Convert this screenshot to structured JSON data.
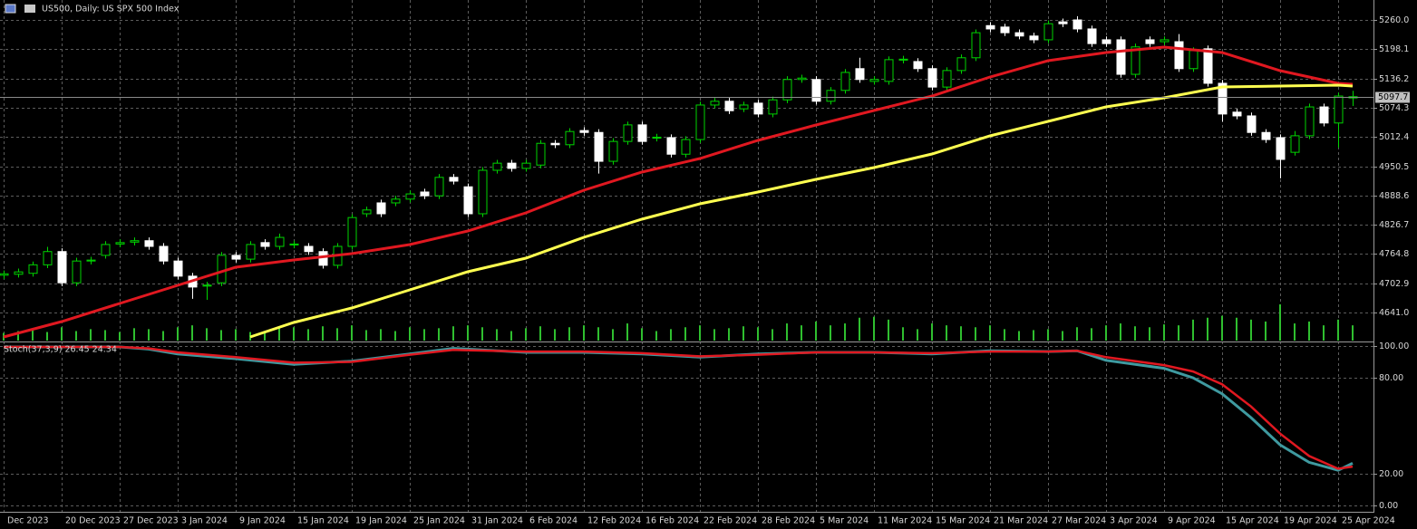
{
  "chart_data": [
    {
      "type": "candlestick",
      "title": "US500, Daily:  US SPX 500 Index",
      "categories": [
        "Dec 2023",
        null,
        null,
        null,
        "20 Dec 2023",
        null,
        null,
        null,
        "27 Dec 2023",
        null,
        null,
        null,
        "3 Jan 2024",
        null,
        null,
        null,
        "9 Jan 2024",
        null,
        null,
        null,
        "15 Jan 2024",
        null,
        null,
        null,
        "19 Jan 2024",
        null,
        null,
        null,
        "25 Jan 2024",
        null,
        null,
        null,
        "31 Jan 2024",
        null,
        null,
        null,
        "6 Feb 2024",
        null,
        null,
        null,
        "12 Feb 2024",
        null,
        null,
        null,
        "16 Feb 2024",
        null,
        null,
        null,
        "22 Feb 2024",
        null,
        null,
        null,
        "28 Feb 2024",
        null,
        null,
        null,
        "5 Mar 2024",
        null,
        null,
        null,
        "11 Mar 2024",
        null,
        null,
        null,
        "15 Mar 2024",
        null,
        null,
        null,
        "21 Mar 2024",
        null,
        null,
        null,
        "27 Mar 2024",
        null,
        null,
        null,
        "3 Apr 2024",
        null,
        null,
        null,
        "9 Apr 2024",
        null,
        null,
        null,
        "15 Apr 2024",
        null,
        null,
        null,
        "19 Apr 2024",
        null,
        null,
        null,
        "25 Apr 2024",
        null
      ],
      "open": [
        4720,
        4722,
        4724,
        4742,
        4770,
        4704,
        4750,
        4762,
        4786,
        4790,
        4793,
        4781,
        4750,
        4718,
        4697,
        4704,
        4762,
        4754,
        4789,
        4781,
        4784,
        4781,
        4770,
        4741,
        4781,
        4850,
        4873,
        4873,
        4881,
        4896,
        4888,
        4927,
        4907,
        4850,
        4942,
        4957,
        4946,
        4953,
        4999,
        4996,
        5026,
        5022,
        4961,
        5003,
        5038,
        5010,
        5011,
        4976,
        5007,
        5080,
        5088,
        5072,
        5084,
        5061,
        5091,
        5134,
        5134,
        5088,
        5111,
        5157,
        5130,
        5130,
        5175,
        5172,
        5157,
        5118,
        5153,
        5180,
        5248,
        5245,
        5233,
        5226,
        5218,
        5256,
        5260,
        5241,
        5218,
        5218,
        5145,
        5218,
        5214,
        5214,
        5157,
        5199,
        5126,
        5065,
        5057,
        5022,
        5011,
        4980,
        5015,
        5076,
        5042,
        5095
      ],
      "high": [
        4730,
        4734,
        4749,
        4780,
        4777,
        4757,
        4759,
        4792,
        4796,
        4800,
        4800,
        4788,
        4757,
        4725,
        4706,
        4769,
        4769,
        4792,
        4796,
        4808,
        4793,
        4788,
        4777,
        4788,
        4849,
        4865,
        4880,
        4888,
        4899,
        4903,
        4934,
        4934,
        4914,
        4949,
        4964,
        4964,
        4964,
        5006,
        5006,
        5031,
        5033,
        5029,
        5010,
        5045,
        5045,
        5019,
        5018,
        5014,
        5087,
        5095,
        5095,
        5087,
        5091,
        5098,
        5141,
        5144,
        5141,
        5118,
        5156,
        5180,
        5141,
        5183,
        5184,
        5179,
        5164,
        5160,
        5187,
        5240,
        5255,
        5252,
        5240,
        5233,
        5259,
        5263,
        5268,
        5248,
        5225,
        5225,
        5210,
        5225,
        5225,
        5230,
        5202,
        5206,
        5133,
        5072,
        5064,
        5029,
        5018,
        5025,
        5083,
        5083,
        5106,
        5110
      ],
      "low": [
        4712,
        4715,
        4717,
        4735,
        4697,
        4697,
        4743,
        4755,
        4779,
        4783,
        4774,
        4743,
        4711,
        4670,
        4668,
        4697,
        4747,
        4747,
        4774,
        4774,
        4777,
        4763,
        4734,
        4734,
        4774,
        4843,
        4843,
        4866,
        4874,
        4881,
        4881,
        4912,
        4843,
        4843,
        4935,
        4939,
        4939,
        4946,
        4989,
        4989,
        5015,
        4935,
        4954,
        4996,
        4996,
        5003,
        4969,
        4969,
        5000,
        5073,
        5061,
        5065,
        5054,
        5054,
        5084,
        5127,
        5081,
        5081,
        5104,
        5127,
        5123,
        5123,
        5168,
        5150,
        5111,
        5111,
        5146,
        5173,
        5234,
        5226,
        5219,
        5211,
        5211,
        5245,
        5234,
        5203,
        5203,
        5138,
        5138,
        5203,
        5207,
        5150,
        5150,
        5119,
        5045,
        5050,
        5015,
        5000,
        4925,
        4973,
        5008,
        5035,
        4990,
        5078
      ],
      "close": [
        4723,
        4727,
        4742,
        4770,
        4704,
        4750,
        4752,
        4785,
        4789,
        4793,
        4781,
        4750,
        4718,
        4695,
        4699,
        4762,
        4754,
        4785,
        4781,
        4800,
        4786,
        4770,
        4741,
        4781,
        4842,
        4858,
        4850,
        4881,
        4892,
        4888,
        4927,
        4919,
        4850,
        4942,
        4957,
        4946,
        4957,
        4999,
        4996,
        5024,
        5022,
        4961,
        5003,
        5038,
        5003,
        5012,
        4976,
        5007,
        5080,
        5088,
        5068,
        5080,
        5061,
        5091,
        5134,
        5137,
        5088,
        5111,
        5149,
        5134,
        5134,
        5176,
        5177,
        5157,
        5118,
        5153,
        5180,
        5233,
        5241,
        5233,
        5226,
        5218,
        5252,
        5252,
        5241,
        5210,
        5210,
        5145,
        5203,
        5210,
        5218,
        5157,
        5195,
        5126,
        5061,
        5057,
        5022,
        5007,
        4965,
        5015,
        5076,
        5042,
        5099,
        5097.7
      ],
      "up_color": "#00d400",
      "down_color": "#ffffff",
      "volume": [
        8,
        10,
        12,
        9,
        14,
        10,
        12,
        11,
        9,
        13,
        12,
        10,
        14,
        16,
        13,
        11,
        12,
        9,
        10,
        13,
        14,
        12,
        15,
        13,
        16,
        11,
        12,
        10,
        14,
        12,
        13,
        15,
        16,
        14,
        12,
        10,
        13,
        15,
        12,
        14,
        16,
        14,
        12,
        18,
        13,
        10,
        12,
        14,
        16,
        12,
        13,
        15,
        14,
        12,
        18,
        16,
        20,
        16,
        18,
        24,
        25,
        22,
        14,
        12,
        18,
        16,
        15,
        14,
        16,
        12,
        10,
        11,
        12,
        10,
        14,
        13,
        16,
        18,
        15,
        14,
        17,
        16,
        22,
        24,
        26,
        24,
        22,
        20,
        38,
        18,
        20,
        16,
        22,
        16
      ],
      "volume_color": "#2fbf2f",
      "lines": [
        {
          "color": "#e01820",
          "x": [
            0,
            4,
            8,
            12,
            16,
            20,
            24,
            28,
            32,
            36,
            40,
            44,
            48,
            52,
            56,
            60,
            64,
            68,
            72,
            76,
            80,
            84,
            88,
            92,
            93
          ],
          "values": [
            4589.4,
            4622.0,
            4660.3,
            4698.6,
            4737.0,
            4752.3,
            4765.7,
            4784.8,
            4813.6,
            4851.9,
            4899.8,
            4938.1,
            4966.9,
            5005.2,
            5037.7,
            5068.4,
            5099.1,
            5139.3,
            5173.8,
            5191.0,
            5202.5,
            5191.0,
            5152.7,
            5125.9,
            5124.0
          ]
        },
        {
          "color": "#ffff50",
          "x": [
            17,
            20,
            24,
            28,
            32,
            36,
            40,
            44,
            48,
            52,
            56,
            60,
            64,
            68,
            72,
            76,
            80,
            84,
            88,
            92,
            93
          ],
          "values": [
            4589.4,
            4620.0,
            4650.7,
            4689.0,
            4727.3,
            4756.1,
            4800.2,
            4838.5,
            4871.0,
            4895.9,
            4922.8,
            4947.7,
            4976.4,
            5014.8,
            5045.4,
            5076.1,
            5095.2,
            5118.2,
            5120.1,
            5122.0,
            5120.1
          ]
        }
      ],
      "last_price": 5097.7,
      "ylim": [
        4581.7,
        5302.2
      ],
      "yticks": [
        {
          "value": 5260,
          "label": "5260.0"
        },
        {
          "value": 5198.1,
          "label": "5198.1"
        },
        {
          "value": 5136.2,
          "label": "5136.2"
        },
        {
          "value": 5074.3,
          "label": "5074.3"
        },
        {
          "value": 5012.4,
          "label": "5012.4"
        },
        {
          "value": 4950.5,
          "label": "4950.5"
        },
        {
          "value": 4888.6,
          "label": "4888.6"
        },
        {
          "value": 4826.7,
          "label": "4826.7"
        },
        {
          "value": 4764.8,
          "label": "4764.8"
        },
        {
          "value": 4702.9,
          "label": "4702.9"
        },
        {
          "value": 4641,
          "label": "4641.0"
        }
      ],
      "grid": true
    },
    {
      "type": "line",
      "title": "Stoch(37,3,9) 26.45 24.34",
      "series": [
        {
          "color": "#3f9aa0",
          "x": [
            0,
            8,
            10,
            12,
            16,
            20,
            24,
            28,
            31,
            36,
            40,
            44,
            48,
            52,
            56,
            60,
            64,
            68,
            72,
            74,
            76,
            80,
            82,
            84,
            86,
            88,
            90,
            92,
            93
          ],
          "values": [
            99.4,
            99.4,
            98,
            95,
            92,
            88.5,
            90.5,
            95,
            98.5,
            96,
            96,
            95,
            93,
            95,
            96,
            96,
            95,
            97,
            96.5,
            97,
            91,
            86,
            80,
            70,
            55,
            38,
            27,
            22,
            26.45
          ]
        },
        {
          "color": "#e01820",
          "x": [
            0,
            8,
            10,
            12,
            16,
            20,
            24,
            28,
            31,
            36,
            40,
            44,
            48,
            52,
            56,
            60,
            64,
            68,
            72,
            74,
            76,
            80,
            82,
            84,
            86,
            88,
            90,
            92,
            93
          ],
          "values": [
            99.4,
            99.4,
            98.5,
            96,
            93,
            89.5,
            90,
            94.5,
            97.5,
            96.5,
            96.5,
            95.5,
            93.5,
            94.5,
            96,
            96,
            95.5,
            96.5,
            96.5,
            97,
            93,
            88,
            84,
            76,
            62,
            45,
            31,
            23,
            24.34
          ]
        }
      ],
      "ylim": [
        -4,
        102.8
      ],
      "yticks": [
        {
          "value": 100,
          "label": "100.00"
        },
        {
          "value": 80,
          "label": "80.00"
        },
        {
          "value": 20,
          "label": "20.00"
        },
        {
          "value": 0,
          "label": "0.00"
        }
      ],
      "grid": true
    }
  ]
}
